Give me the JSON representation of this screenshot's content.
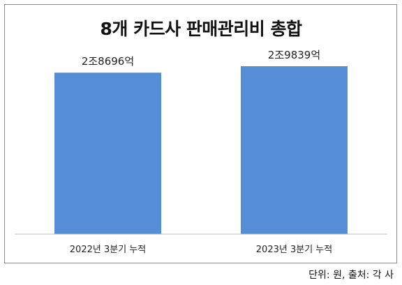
{
  "chart_data": {
    "type": "bar",
    "title": "8개 카드사 판매관리비 총합",
    "categories": [
      "2022년 3분기 누적",
      "2023년 3분기 누적"
    ],
    "values": [
      28696,
      29839
    ],
    "data_labels": [
      "2조8696억",
      "2조9839억"
    ],
    "unit_note": "단위: 원, 출처: 각 사",
    "bar_color": "#568dd7",
    "grid": false,
    "legend": "none"
  }
}
